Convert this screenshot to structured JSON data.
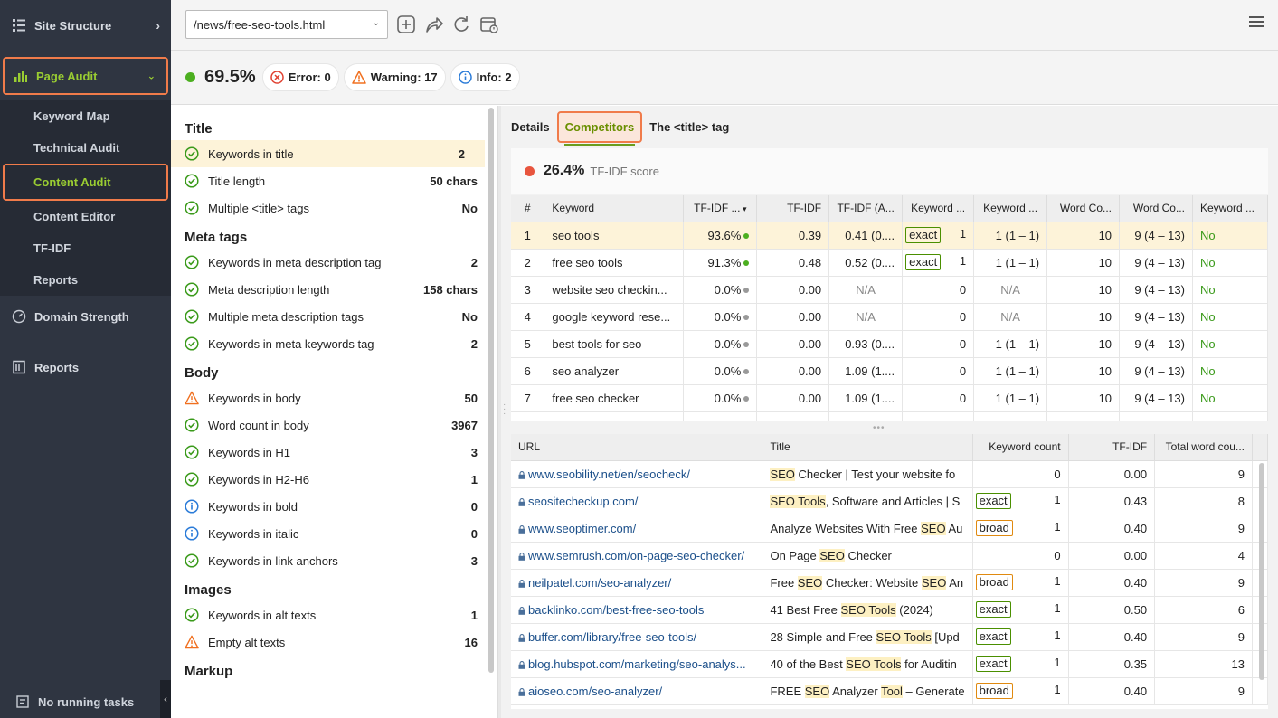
{
  "sidebar": {
    "site_structure": "Site Structure",
    "page_audit": "Page Audit",
    "subitems": [
      "Keyword Map",
      "Technical Audit",
      "Content Audit",
      "Content Editor",
      "TF-IDF",
      "Reports"
    ],
    "domain_strength": "Domain Strength",
    "reports": "Reports",
    "footer": "No running tasks"
  },
  "toolbar": {
    "url": "/news/free-seo-tools.html"
  },
  "scorebar": {
    "score": "69.5%",
    "error": "Error: 0",
    "warning": "Warning: 17",
    "info": "Info: 2"
  },
  "left": {
    "groups": [
      {
        "title": "Title",
        "rows": [
          {
            "icon": "check",
            "label": "Keywords in title",
            "value": "2"
          },
          {
            "icon": "check",
            "label": "Title length",
            "value": "50 chars"
          },
          {
            "icon": "check",
            "label": "Multiple <title> tags",
            "value": "No"
          }
        ]
      },
      {
        "title": "Meta tags",
        "rows": [
          {
            "icon": "check",
            "label": "Keywords in meta description tag",
            "value": "2"
          },
          {
            "icon": "check",
            "label": "Meta description length",
            "value": "158 chars"
          },
          {
            "icon": "check",
            "label": "Multiple meta description tags",
            "value": "No"
          },
          {
            "icon": "check",
            "label": "Keywords in meta keywords tag",
            "value": "2"
          }
        ]
      },
      {
        "title": "Body",
        "rows": [
          {
            "icon": "warn",
            "label": "Keywords in body",
            "value": "50"
          },
          {
            "icon": "check",
            "label": "Word count in body",
            "value": "3967"
          },
          {
            "icon": "check",
            "label": "Keywords in H1",
            "value": "3"
          },
          {
            "icon": "check",
            "label": "Keywords in H2-H6",
            "value": "1"
          },
          {
            "icon": "info",
            "label": "Keywords in bold",
            "value": "0"
          },
          {
            "icon": "info",
            "label": "Keywords in italic",
            "value": "0"
          },
          {
            "icon": "check",
            "label": "Keywords in link anchors",
            "value": "3"
          }
        ]
      },
      {
        "title": "Images",
        "rows": [
          {
            "icon": "check",
            "label": "Keywords in alt texts",
            "value": "1"
          },
          {
            "icon": "warn",
            "label": "Empty alt texts",
            "value": "16"
          }
        ]
      },
      {
        "title": "Markup",
        "rows": []
      }
    ]
  },
  "tabs": [
    "Details",
    "Competitors",
    "The <title> tag"
  ],
  "tfidf": {
    "score": "26.4%",
    "label": "TF-IDF score"
  },
  "kw_table": {
    "headers": [
      "#",
      "Keyword",
      "TF-IDF ...",
      "TF-IDF",
      "TF-IDF (A...",
      "Keyword ...",
      "Keyword ...",
      "Word Co...",
      "Word Co...",
      "Keyword ..."
    ],
    "rows": [
      {
        "n": "1",
        "kw": "seo tools",
        "pct": "93.6%",
        "dot": "#4caf20",
        "tfidf": "0.39",
        "avg": "0.41 (0....",
        "tag": "exact",
        "kc": "1",
        "kc2": "1 (1 – 1)",
        "wc": "10",
        "wc2": "9 (4 – 13)",
        "last": "No"
      },
      {
        "n": "2",
        "kw": "free seo tools",
        "pct": "91.3%",
        "dot": "#4caf20",
        "tfidf": "0.48",
        "avg": "0.52 (0....",
        "tag": "exact",
        "kc": "1",
        "kc2": "1 (1 – 1)",
        "wc": "10",
        "wc2": "9 (4 – 13)",
        "last": "No"
      },
      {
        "n": "3",
        "kw": "website seo checkin...",
        "pct": "0.0%",
        "dot": "#999999",
        "tfidf": "0.00",
        "avg": "N/A",
        "tag": "",
        "kc": "0",
        "kc2": "N/A",
        "wc": "10",
        "wc2": "9 (4 – 13)",
        "last": "No"
      },
      {
        "n": "4",
        "kw": "google keyword rese...",
        "pct": "0.0%",
        "dot": "#999999",
        "tfidf": "0.00",
        "avg": "N/A",
        "tag": "",
        "kc": "0",
        "kc2": "N/A",
        "wc": "10",
        "wc2": "9 (4 – 13)",
        "last": "No"
      },
      {
        "n": "5",
        "kw": "best tools for seo",
        "pct": "0.0%",
        "dot": "#999999",
        "tfidf": "0.00",
        "avg": "0.93 (0....",
        "tag": "",
        "kc": "0",
        "kc2": "1 (1 – 1)",
        "wc": "10",
        "wc2": "9 (4 – 13)",
        "last": "No"
      },
      {
        "n": "6",
        "kw": "seo analyzer",
        "pct": "0.0%",
        "dot": "#999999",
        "tfidf": "0.00",
        "avg": "1.09 (1....",
        "tag": "",
        "kc": "0",
        "kc2": "1 (1 – 1)",
        "wc": "10",
        "wc2": "9 (4 – 13)",
        "last": "No"
      },
      {
        "n": "7",
        "kw": "free seo checker",
        "pct": "0.0%",
        "dot": "#999999",
        "tfidf": "0.00",
        "avg": "1.09 (1....",
        "tag": "",
        "kc": "0",
        "kc2": "1 (1 – 1)",
        "wc": "10",
        "wc2": "9 (4 – 13)",
        "last": "No"
      }
    ]
  },
  "url_table": {
    "headers": [
      "URL",
      "Title",
      "Keyword count",
      "TF-IDF",
      "Total word cou..."
    ],
    "rows": [
      {
        "url": "www.seobility.net/en/seocheck/",
        "title": [
          [
            "SEO",
            true
          ],
          [
            " Checker | Test your website fo",
            false
          ]
        ],
        "tag": "",
        "kc": "0",
        "tfidf": "0.00",
        "twc": "9"
      },
      {
        "url": "seositecheckup.com/",
        "title": [
          [
            "SEO Tools",
            true
          ],
          [
            ", Software and Articles | S",
            false
          ]
        ],
        "tag": "exact",
        "kc": "1",
        "tfidf": "0.43",
        "twc": "8"
      },
      {
        "url": "www.seoptimer.com/",
        "title": [
          [
            "Analyze Websites With Free ",
            false
          ],
          [
            "SEO",
            true
          ],
          [
            " Au",
            false
          ]
        ],
        "tag": "broad",
        "kc": "1",
        "tfidf": "0.40",
        "twc": "9"
      },
      {
        "url": "www.semrush.com/on-page-seo-checker/",
        "title": [
          [
            "On Page ",
            false
          ],
          [
            "SEO",
            true
          ],
          [
            " Checker",
            false
          ]
        ],
        "tag": "",
        "kc": "0",
        "tfidf": "0.00",
        "twc": "4"
      },
      {
        "url": "neilpatel.com/seo-analyzer/",
        "title": [
          [
            "Free ",
            false
          ],
          [
            "SEO",
            true
          ],
          [
            " Checker: Website ",
            false
          ],
          [
            "SEO",
            true
          ],
          [
            " An",
            false
          ]
        ],
        "tag": "broad",
        "kc": "1",
        "tfidf": "0.40",
        "twc": "9"
      },
      {
        "url": "backlinko.com/best-free-seo-tools",
        "title": [
          [
            "41 Best Free ",
            false
          ],
          [
            "SEO Tools",
            true
          ],
          [
            " (2024)",
            false
          ]
        ],
        "tag": "exact",
        "kc": "1",
        "tfidf": "0.50",
        "twc": "6"
      },
      {
        "url": "buffer.com/library/free-seo-tools/",
        "title": [
          [
            "28 Simple and Free ",
            false
          ],
          [
            "SEO Tools",
            true
          ],
          [
            " [Upd",
            false
          ]
        ],
        "tag": "exact",
        "kc": "1",
        "tfidf": "0.40",
        "twc": "9"
      },
      {
        "url": "blog.hubspot.com/marketing/seo-analys...",
        "title": [
          [
            "40 of the Best ",
            false
          ],
          [
            "SEO Tools",
            true
          ],
          [
            " for Auditin",
            false
          ]
        ],
        "tag": "exact",
        "kc": "1",
        "tfidf": "0.35",
        "twc": "13"
      },
      {
        "url": "aioseo.com/seo-analyzer/",
        "title": [
          [
            "FREE ",
            false
          ],
          [
            "SEO",
            true
          ],
          [
            " Analyzer ",
            false
          ],
          [
            "Tool",
            true
          ],
          [
            " – Generate",
            false
          ]
        ],
        "tag": "broad",
        "kc": "1",
        "tfidf": "0.40",
        "twc": "9"
      }
    ]
  },
  "colors": {
    "accent": "#9acd32",
    "highlight_border": "#f07b4a",
    "sidebar_bg": "#2f3541",
    "score_dot": "#4caf20",
    "tfidf_dot": "#e8553e"
  }
}
